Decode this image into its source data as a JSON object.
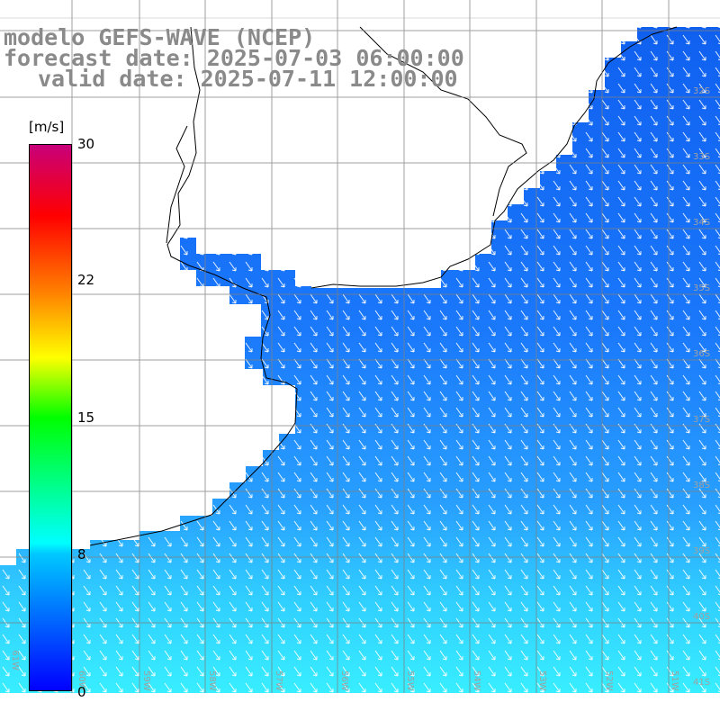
{
  "title": {
    "line1": "modelo GEFS-WAVE (NCEP)",
    "line2": "forecast date: 2025-07-03 06:00:00",
    "line3": "valid date: 2025-07-11 12:00:00"
  },
  "colorbar": {
    "unit": "[m/s]",
    "ticks": [
      {
        "value": 30,
        "label": "30"
      },
      {
        "value": 22,
        "label": "22"
      },
      {
        "value": 15,
        "label": "15"
      },
      {
        "value": 8,
        "label": "8"
      },
      {
        "value": 0,
        "label": "0"
      }
    ],
    "colors": [
      "#0000ff",
      "#00c8ff",
      "#00ffff",
      "#00ff00",
      "#ffff00",
      "#ff8000",
      "#ff0000",
      "#c8007a"
    ]
  },
  "map_data": {
    "type": "wind-vector-map",
    "quantity": "wind speed",
    "lon_range": [
      -61,
      -50
    ],
    "lat_range": [
      -41,
      -31
    ],
    "lat_labels": [
      "32S",
      "33S",
      "34S",
      "35S",
      "36S",
      "37S",
      "38S",
      "39S",
      "40S",
      "41S"
    ],
    "lon_labels": [
      "61W",
      "60W",
      "59W",
      "58W",
      "57W",
      "56W",
      "55W",
      "54W",
      "53W",
      "52W",
      "51W"
    ],
    "land_color": "#ffffff",
    "ocean_colors": [
      "#1060f0",
      "#28a0ff",
      "#30e0ff"
    ],
    "grid": true
  }
}
